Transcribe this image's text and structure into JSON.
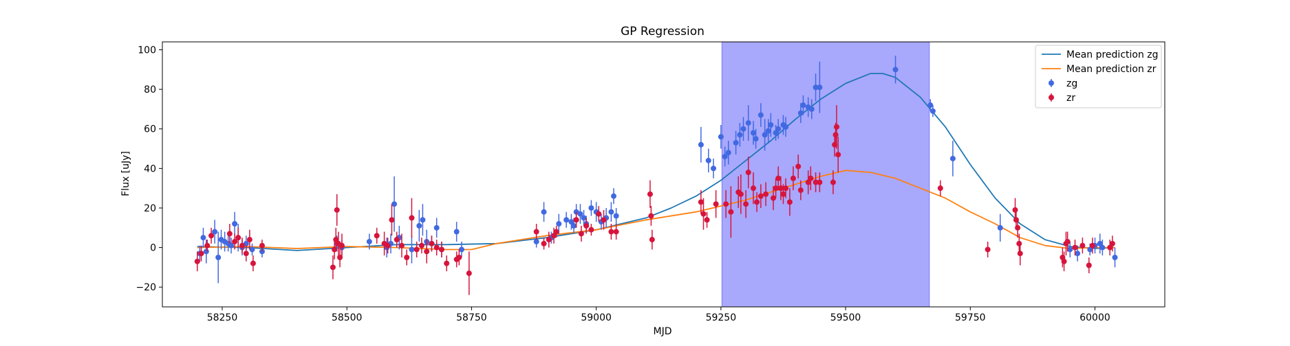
{
  "chart_data": {
    "type": "scatter",
    "title": "GP Regression",
    "xlabel": "MJD",
    "ylabel": "Flux [uJy]",
    "xlim": [
      58130,
      60140
    ],
    "ylim": [
      -30,
      104
    ],
    "xticks": [
      58250,
      58500,
      58750,
      59000,
      59250,
      59500,
      59750,
      60000
    ],
    "yticks": [
      -20,
      0,
      20,
      40,
      60,
      80,
      100
    ],
    "grid": false,
    "legend_position": "top-right",
    "shaded_region": {
      "x_start": 59252,
      "x_end": 59668,
      "color": "#a8a8fd"
    },
    "series": [
      {
        "name": "Mean prediction zg",
        "kind": "line",
        "color": "#1f77b4",
        "x": [
          58200,
          58300,
          58400,
          58500,
          58600,
          58700,
          58800,
          58900,
          59000,
          59100,
          59150,
          59200,
          59250,
          59300,
          59350,
          59400,
          59450,
          59500,
          59550,
          59575,
          59600,
          59650,
          59700,
          59750,
          59800,
          59850,
          59900,
          59950,
          60000,
          60040
        ],
        "y": [
          0.5,
          0,
          -1.5,
          0,
          1.5,
          1.5,
          2,
          5,
          9,
          15,
          20,
          26,
          34,
          44,
          54,
          65,
          75,
          83,
          88,
          88,
          86,
          76,
          61,
          42,
          25,
          12,
          4,
          0.5,
          -0.5,
          0
        ]
      },
      {
        "name": "Mean prediction zr",
        "kind": "line",
        "color": "#ff7f0e",
        "x": [
          58200,
          58300,
          58400,
          58500,
          58600,
          58700,
          58750,
          58800,
          58900,
          59000,
          59100,
          59200,
          59250,
          59300,
          59350,
          59400,
          59450,
          59500,
          59550,
          59600,
          59650,
          59700,
          59750,
          59800,
          59850,
          59900,
          59950,
          60000,
          60040
        ],
        "y": [
          0,
          0.5,
          -0.5,
          0.5,
          0,
          -1,
          -1,
          2,
          6,
          9,
          14,
          18,
          21,
          24,
          28,
          32,
          36,
          39,
          38,
          35,
          30,
          25,
          18,
          12,
          5,
          1,
          -0.5,
          0,
          0
        ]
      },
      {
        "name": "zg",
        "kind": "errorbar",
        "color": "#4169e1",
        "x": [
          58205,
          58212,
          58218,
          58235,
          58242,
          58248,
          58255,
          58262,
          58268,
          58275,
          58282,
          58290,
          58298,
          58310,
          58330,
          58480,
          58490,
          58545,
          58580,
          58588,
          58595,
          58605,
          58630,
          58645,
          58652,
          58660,
          58670,
          58680,
          58690,
          58720,
          58730,
          58880,
          58895,
          58910,
          58925,
          58940,
          58950,
          58955,
          58960,
          58968,
          58975,
          58980,
          58990,
          59000,
          59010,
          59020,
          59030,
          59035,
          59040,
          59210,
          59225,
          59235,
          59250,
          59258,
          59265,
          59280,
          59288,
          59295,
          59305,
          59315,
          59320,
          59330,
          59338,
          59345,
          59350,
          59360,
          59365,
          59375,
          59380,
          59410,
          59415,
          59425,
          59432,
          59440,
          59448,
          59600,
          59670,
          59675,
          59715,
          59810,
          59950,
          59965,
          59990,
          60000,
          60010,
          60015,
          60040
        ],
        "y": [
          -3,
          5,
          -2,
          8,
          -5,
          4,
          3,
          2,
          1,
          12,
          5,
          0,
          2,
          -1,
          -2,
          2,
          0,
          3,
          0,
          2,
          22,
          5,
          -1,
          11,
          14,
          3,
          2,
          10,
          -1,
          8,
          -1,
          3,
          18,
          5,
          12,
          14,
          13,
          11,
          18,
          17,
          15,
          12,
          20,
          18,
          13,
          15,
          18,
          26,
          16,
          52,
          44,
          40,
          56,
          46,
          48,
          53,
          57,
          60,
          63,
          58,
          55,
          67,
          57,
          59,
          62,
          58,
          60,
          62,
          61,
          68,
          72,
          71,
          70,
          81,
          81,
          90,
          72,
          69,
          45,
          10,
          -1,
          -3,
          -1,
          1,
          2,
          0,
          -5
        ],
        "err": [
          4,
          5,
          6,
          6,
          13,
          5,
          5,
          4,
          4,
          6,
          7,
          4,
          4,
          3,
          3,
          4,
          4,
          4,
          5,
          5,
          14,
          6,
          7,
          8,
          8,
          6,
          4,
          5,
          4,
          5,
          4,
          3,
          5,
          3,
          5,
          4,
          4,
          4,
          4,
          5,
          4,
          4,
          4,
          5,
          4,
          5,
          5,
          4,
          4,
          9,
          6,
          5,
          6,
          5,
          6,
          6,
          6,
          6,
          9,
          6,
          5,
          6,
          8,
          6,
          6,
          4,
          5,
          5,
          5,
          5,
          5,
          5,
          5,
          7,
          13,
          7,
          3,
          3,
          9,
          7,
          4,
          4,
          3,
          4,
          5,
          4,
          5
        ]
      },
      {
        "name": "zr",
        "kind": "errorbar",
        "color": "#d6143c",
        "x": [
          58200,
          58208,
          58220,
          58228,
          58265,
          58275,
          58282,
          58290,
          58298,
          58305,
          58312,
          58330,
          58472,
          58475,
          58478,
          58480,
          58483,
          58486,
          58490,
          58560,
          58575,
          58582,
          58590,
          58600,
          58610,
          58620,
          58630,
          58640,
          58650,
          58660,
          58670,
          58680,
          58690,
          58700,
          58720,
          58725,
          58745,
          58880,
          58895,
          58905,
          58915,
          58920,
          58960,
          58970,
          58980,
          58990,
          59005,
          59015,
          59030,
          59040,
          59108,
          59110,
          59112,
          59210,
          59215,
          59222,
          59240,
          59260,
          59270,
          59285,
          59290,
          59300,
          59305,
          59315,
          59322,
          59330,
          59340,
          59355,
          59360,
          59365,
          59370,
          59375,
          59380,
          59388,
          59395,
          59405,
          59410,
          59425,
          59430,
          59440,
          59448,
          59475,
          59478,
          59480,
          59482,
          59485,
          59690,
          59785,
          59840,
          59842,
          59845,
          59848,
          59850,
          59935,
          59938,
          59942,
          59945,
          59960,
          59975,
          59988,
          59995,
          60030,
          60035
        ],
        "y": [
          -7,
          -3,
          1,
          6,
          7,
          3,
          5,
          1,
          -3,
          4,
          -8,
          1,
          -10,
          -1,
          4,
          19,
          2,
          -5,
          1,
          6,
          2,
          1,
          14,
          4,
          1,
          -5,
          15,
          -1,
          1,
          -2,
          2,
          0,
          -1,
          -8,
          -6,
          -5,
          -13,
          8,
          2,
          4,
          6,
          8,
          14,
          7,
          11,
          9,
          17,
          14,
          8,
          8,
          27,
          16,
          4,
          23,
          17,
          14,
          22,
          22,
          18,
          28,
          27,
          22,
          38,
          30,
          23,
          26,
          27,
          25,
          30,
          35,
          30,
          27,
          30,
          23,
          35,
          41,
          29,
          33,
          35,
          33,
          33,
          33,
          52,
          57,
          61,
          47,
          30,
          -1,
          19,
          14,
          10,
          2,
          -3,
          -5,
          -7,
          2,
          3,
          0,
          1,
          -9,
          1,
          0,
          2
        ],
        "err": [
          5,
          4,
          3,
          4,
          5,
          4,
          5,
          4,
          4,
          5,
          4,
          3,
          6,
          5,
          6,
          8,
          6,
          5,
          6,
          4,
          6,
          4,
          8,
          4,
          6,
          4,
          10,
          4,
          4,
          6,
          4,
          4,
          4,
          4,
          4,
          4,
          11,
          4,
          3,
          4,
          4,
          3,
          4,
          4,
          4,
          3,
          4,
          5,
          4,
          4,
          7,
          5,
          5,
          6,
          8,
          4,
          7,
          7,
          13,
          8,
          10,
          7,
          8,
          8,
          5,
          6,
          6,
          6,
          5,
          6,
          6,
          5,
          5,
          7,
          6,
          6,
          5,
          6,
          6,
          5,
          5,
          6,
          6,
          6,
          11,
          9,
          4,
          4,
          6,
          5,
          5,
          5,
          6,
          5,
          5,
          6,
          5,
          4,
          4,
          4,
          4,
          4,
          4
        ]
      }
    ]
  }
}
